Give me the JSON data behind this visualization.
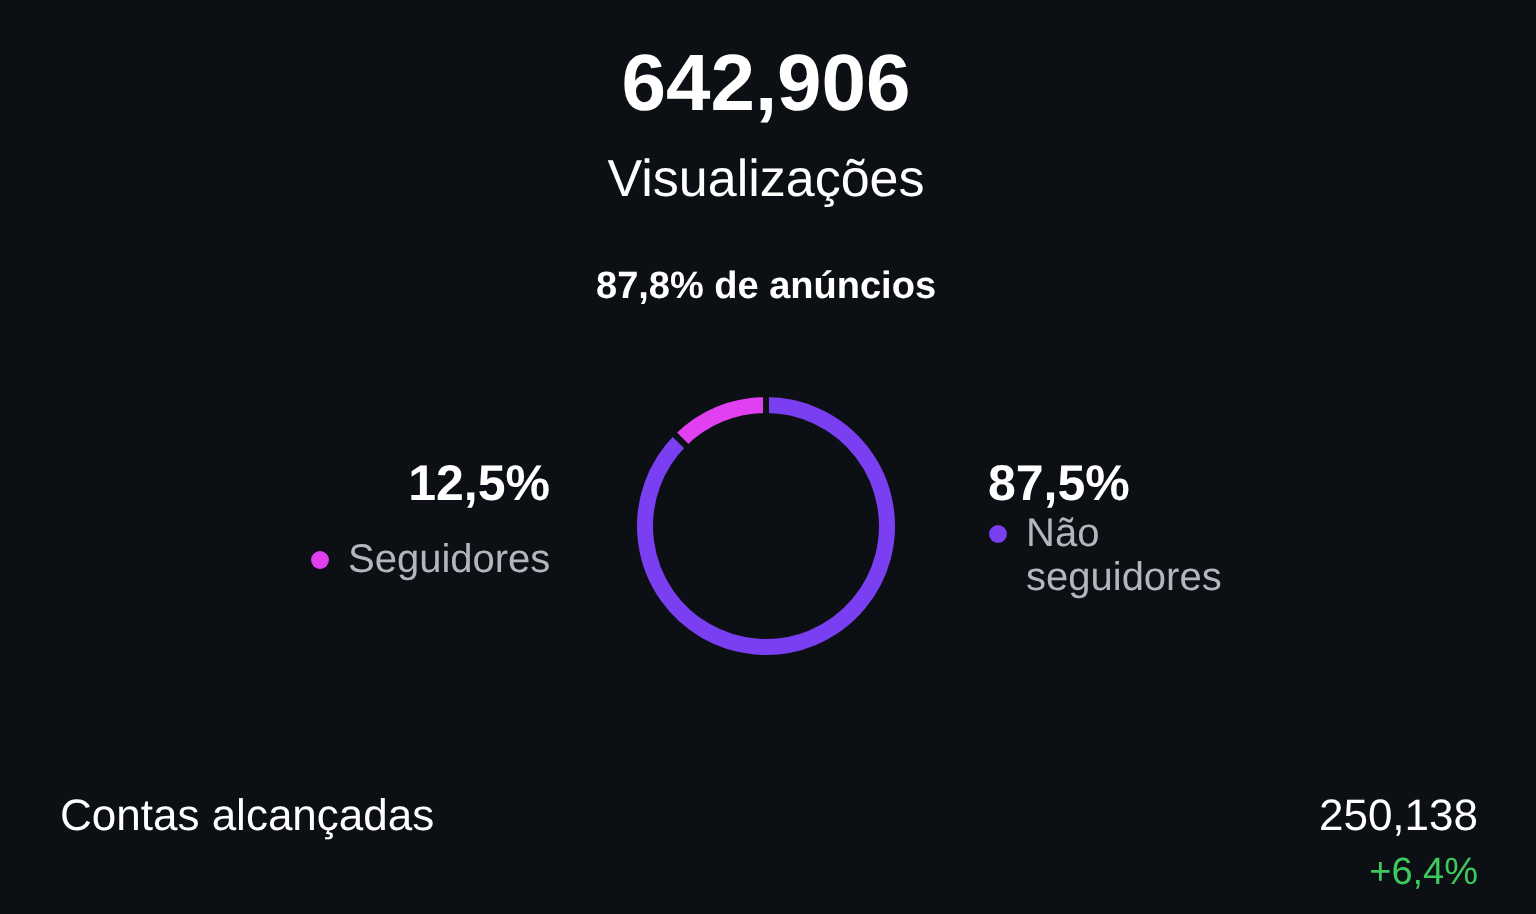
{
  "chart_data": {
    "type": "donut",
    "title": "642,906",
    "subtitle": "Visualizações",
    "categories": [
      "Seguidores",
      "Não seguidores"
    ],
    "values": [
      12.5,
      87.5
    ],
    "colors": [
      "#e040f0",
      "#7b3ff2"
    ],
    "legend": "right",
    "value_labels": [
      "12,5%",
      "87,5%"
    ],
    "annotations": [
      "87,8% de anúncios",
      "Contas alcançadas",
      "250,138",
      "+6,4%"
    ]
  }
}
